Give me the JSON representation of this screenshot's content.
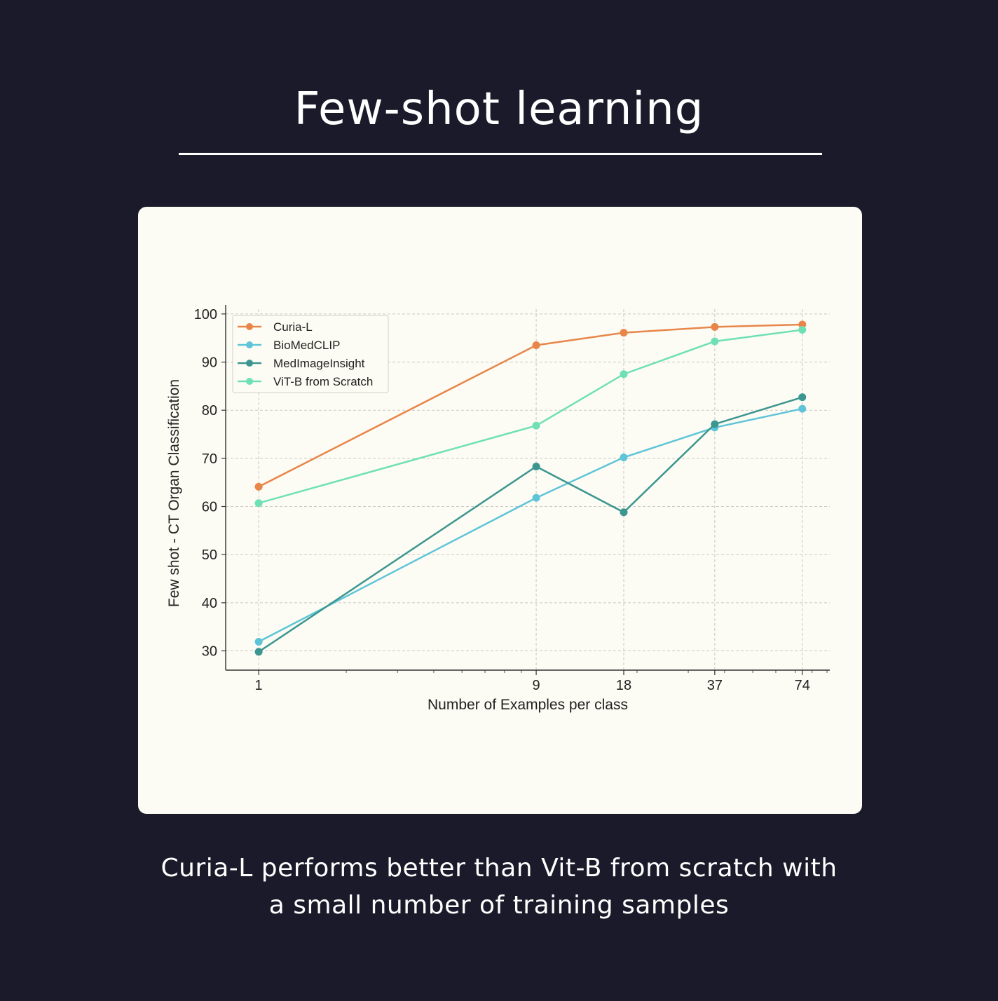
{
  "page": {
    "title": "Few-shot learning",
    "caption_lines": [
      "Curia-L performs better than Vit-B from scratch with",
      "a small number of training samples"
    ]
  },
  "colors": {
    "background": "#1a1a2a",
    "card": "#fcfcf4",
    "text": "#ffffff"
  },
  "chart_data": {
    "type": "line",
    "title": "",
    "xlabel": "Number of Examples per class",
    "ylabel": "Few shot - CT Organ Classification",
    "xscale": "log",
    "x": [
      1,
      9,
      18,
      37,
      74
    ],
    "x_tick_labels": [
      "1",
      "9",
      "18",
      "37",
      "74"
    ],
    "ylim": [
      26,
      101
    ],
    "y_ticks": [
      30,
      40,
      50,
      60,
      70,
      80,
      90,
      100
    ],
    "grid": true,
    "legend_position": "top-left",
    "series": [
      {
        "name": "Curia-L",
        "color": "#e8864a",
        "values": [
          64.1,
          93.5,
          96.1,
          97.3,
          97.8
        ]
      },
      {
        "name": "BioMedCLIP",
        "color": "#5fc4d8",
        "values": [
          31.9,
          61.8,
          70.2,
          76.4,
          80.3
        ]
      },
      {
        "name": "MedImageInsight",
        "color": "#3c9690",
        "values": [
          29.8,
          68.3,
          58.8,
          77.1,
          82.7
        ]
      },
      {
        "name": "ViT-B from Scratch",
        "color": "#6fe0b6",
        "values": [
          60.7,
          76.8,
          87.5,
          94.3,
          96.7
        ]
      }
    ]
  }
}
